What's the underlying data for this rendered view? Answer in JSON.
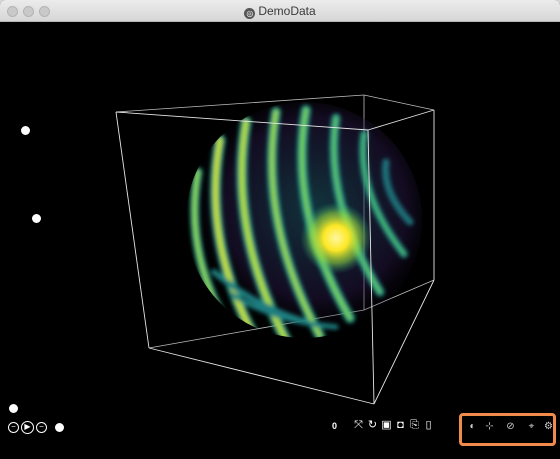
{
  "window": {
    "title": "DemoData",
    "title_icon": "app-icon"
  },
  "scene": {
    "description_hidden": false,
    "colormap": [
      "#2a0a4a",
      "#1f5f6e",
      "#1f9e89",
      "#b5de2b",
      "#fde725"
    ]
  },
  "playback": {
    "frame_number": "0",
    "controls": [
      "step-back-icon",
      "play-icon",
      "step-forward-icon"
    ]
  },
  "toolbar": {
    "icons": [
      "fit-view-icon",
      "reset-view-icon",
      "record-icon",
      "camera-icon",
      "export-icon",
      "document-icon"
    ]
  },
  "highlighted_controls": {
    "icons": [
      "shading-icon",
      "axis-icon",
      "rotate-icon",
      "crosshair-icon",
      "settings-icon"
    ],
    "border_color": "#f08b4b"
  }
}
